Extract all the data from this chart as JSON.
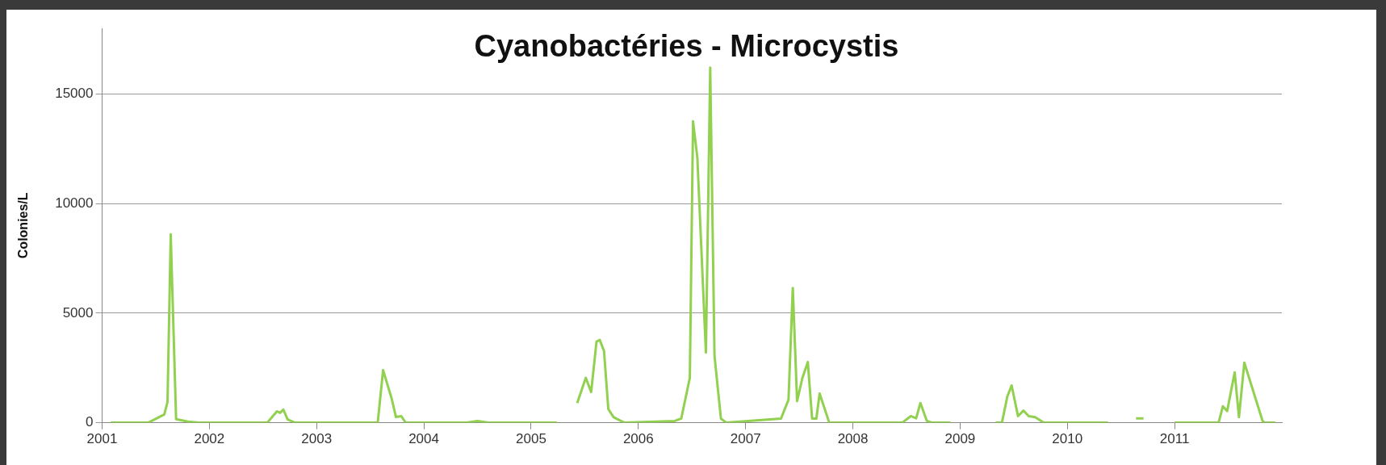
{
  "chart_data": {
    "type": "line",
    "title": "Cyanobactéries - Microcystis",
    "ylabel": "Colonies/L",
    "x": [
      2001.08,
      2001.43,
      2001.58,
      2001.61,
      2001.64,
      2001.69,
      2001.8,
      2001.9,
      2002.54,
      2002.63,
      2002.66,
      2002.69,
      2002.73,
      2002.8,
      2003.57,
      2003.62,
      2003.66,
      2003.7,
      2003.74,
      2003.79,
      2003.83,
      2004.4,
      2004.5,
      2004.6,
      2005.24,
      2005.34,
      2005.43,
      2005.51,
      2005.56,
      2005.61,
      2005.64,
      2005.68,
      2005.72,
      2005.77,
      2005.87,
      2006.34,
      2006.4,
      2006.48,
      2006.51,
      2006.55,
      2006.63,
      2006.67,
      2006.71,
      2006.77,
      2006.82,
      2007.33,
      2007.4,
      2007.44,
      2007.48,
      2007.53,
      2007.58,
      2007.62,
      2007.66,
      2007.69,
      2007.78,
      2008.46,
      2008.54,
      2008.59,
      2008.63,
      2008.69,
      2008.74,
      2008.91,
      2009.1,
      2009.33,
      2009.39,
      2009.44,
      2009.48,
      2009.54,
      2009.59,
      2009.64,
      2009.7,
      2009.78,
      2010.38,
      2010.5,
      2010.64,
      2010.71,
      2010.85,
      2011.0,
      2011.41,
      2011.45,
      2011.49,
      2011.56,
      2011.6,
      2011.65,
      2011.82,
      2011.84,
      2011.94
    ],
    "values": [
      0,
      0,
      375,
      950,
      8600,
      160,
      50,
      0,
      0,
      520,
      450,
      600,
      150,
      0,
      0,
      2400,
      1750,
      1100,
      260,
      300,
      0,
      0,
      80,
      0,
      0,
      null,
      900,
      2050,
      1400,
      3700,
      3780,
      3270,
      620,
      250,
      0,
      80,
      190,
      2050,
      13750,
      12100,
      3200,
      16200,
      3050,
      190,
      0,
      190,
      1050,
      6150,
      980,
      2050,
      2770,
      190,
      190,
      1330,
      0,
      0,
      300,
      200,
      900,
      80,
      0,
      0,
      null,
      0,
      0,
      1190,
      1700,
      300,
      550,
      300,
      250,
      0,
      0,
      null,
      200,
      200,
      null,
      0,
      0,
      750,
      530,
      2300,
      250,
      2740,
      80,
      0,
      0
    ],
    "color": "#92d050",
    "marker": "none",
    "grid": "y",
    "xlim": [
      2001,
      2012
    ],
    "xticks": [
      2001,
      2002,
      2003,
      2004,
      2005,
      2006,
      2007,
      2008,
      2009,
      2010,
      2011
    ],
    "ylim": [
      0,
      18000
    ],
    "yticks": [
      0,
      5000,
      10000,
      15000
    ]
  }
}
